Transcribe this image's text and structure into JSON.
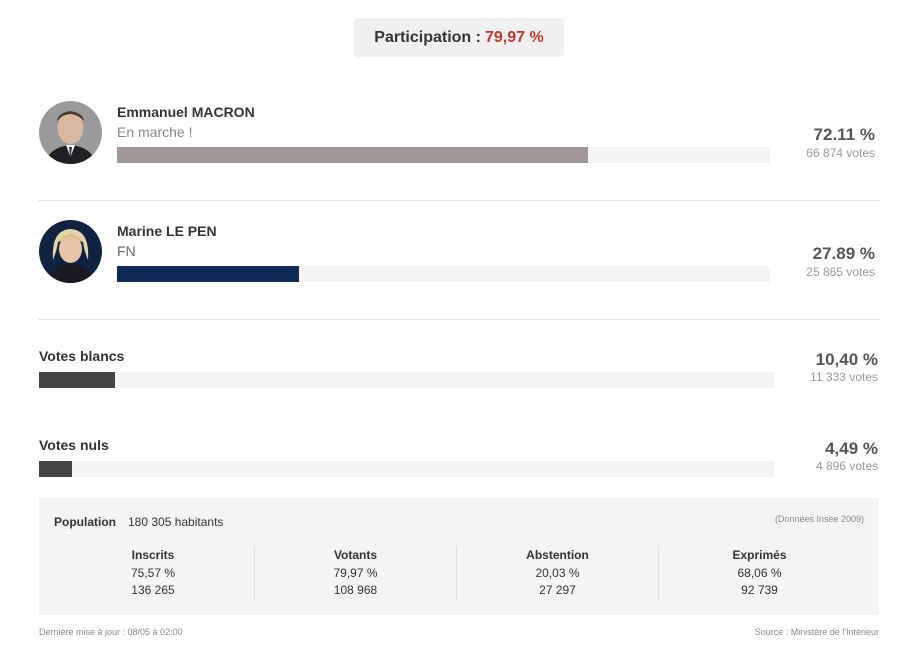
{
  "participation": {
    "label": "Participation :",
    "value": "79,97 %"
  },
  "candidates": [
    {
      "name": "Emmanuel MACRON",
      "party": "En marche !",
      "percent_label": "72.11 %",
      "votes_label": "66 874 votes",
      "share": 72.11,
      "bar_color": "#a29696"
    },
    {
      "name": "Marine LE PEN",
      "party": "FN",
      "percent_label": "27.89 %",
      "votes_label": "25 865 votes",
      "share": 27.89,
      "bar_color": "#0e2a57"
    }
  ],
  "others": [
    {
      "label": "Votes blancs",
      "percent_label": "10,40 %",
      "votes_label": "11 333 votes",
      "share": 10.4,
      "bar_color": "#444444"
    },
    {
      "label": "Votes nuls",
      "percent_label": "4,49 %",
      "votes_label": "4 896 votes",
      "share": 4.49,
      "bar_color": "#444444"
    }
  ],
  "stats": {
    "population_label": "Population",
    "population_value": "180 305 habitants",
    "source_note": "(Données Insee 2009)",
    "columns": [
      {
        "header": "Inscrits",
        "percent": "75,57 %",
        "count": "136 265"
      },
      {
        "header": "Votants",
        "percent": "79,97 %",
        "count": "108 968"
      },
      {
        "header": "Abstention",
        "percent": "20,03 %",
        "count": "27 297"
      },
      {
        "header": "Exprimés",
        "percent": "68,06 %",
        "count": "92 739"
      }
    ]
  },
  "footer": {
    "updated": "Dernière mise à jour : 08/05 à 02:00",
    "source": "Source : Ministère de l'Intérieur"
  }
}
